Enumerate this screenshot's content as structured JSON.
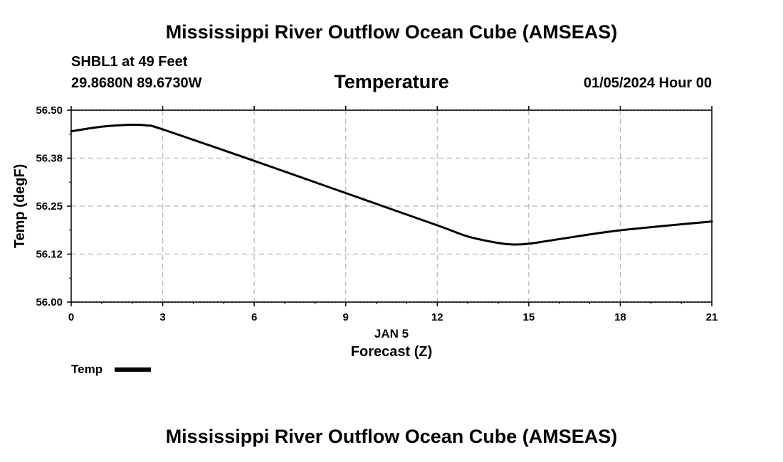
{
  "header": {
    "title": "Mississippi River Outflow Ocean Cube (AMSEAS)",
    "station": "SHBL1 at 49 Feet",
    "coordinates": "29.8680N  89.6730W",
    "variable": "Temperature",
    "datetime": "01/05/2024 Hour 00"
  },
  "footer": {
    "title": "Mississippi River Outflow Ocean Cube (AMSEAS)"
  },
  "chart_data": {
    "type": "line",
    "title": "Temperature",
    "xlabel": "Forecast (Z)",
    "xlabel_date": "JAN 5",
    "ylabel": "Temp (degF)",
    "xlim": [
      0,
      21
    ],
    "ylim": [
      56.0,
      56.5
    ],
    "x_ticks": [
      0,
      3,
      6,
      9,
      12,
      15,
      18,
      21
    ],
    "y_ticks": [
      56.0,
      56.125,
      56.25,
      56.375,
      56.5
    ],
    "y_tick_labels": [
      "56.00",
      "56.12",
      "56.25",
      "56.38",
      "56.50"
    ],
    "grid": true,
    "legend": {
      "label": "Temp",
      "position": "bottom-left"
    },
    "series": [
      {
        "name": "Temp",
        "color": "#000000",
        "x": [
          0,
          1,
          2,
          2.5,
          3,
          6,
          9,
          12,
          13,
          14,
          14.5,
          15,
          16,
          18,
          21
        ],
        "y": [
          56.445,
          56.457,
          56.462,
          56.46,
          56.45,
          56.368,
          56.284,
          56.2,
          56.171,
          56.154,
          56.15,
          56.152,
          56.164,
          56.187,
          56.21
        ]
      }
    ]
  }
}
